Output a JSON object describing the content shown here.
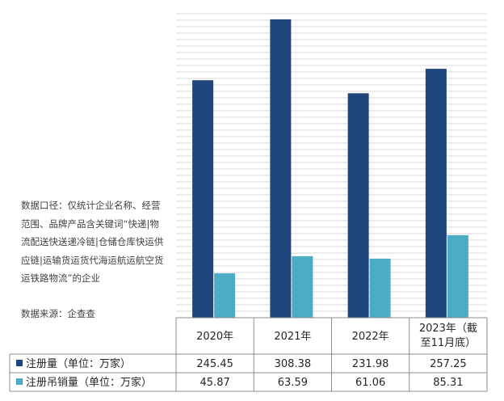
{
  "note": "数据口径：仅统计企业名称、经营范围、品牌产品含关键词“快递|物流配送快送递冷链|仓储仓库快运供应链|运输货运货代海运航运航空货运铁路物流”的企业",
  "source": "数据来源：企查查",
  "colors": {
    "registered": "#1f467c",
    "cancelled": "#4bacc6",
    "grid": "#d9d9d9",
    "border": "#8c8c8c"
  },
  "chart_data": {
    "type": "bar",
    "categories": [
      "2020年",
      "2021年",
      "2022年",
      "2023年（截至11月底）"
    ],
    "series": [
      {
        "name": "注册量（单位：万家）",
        "values": [
          245.45,
          308.38,
          231.98,
          257.25
        ]
      },
      {
        "name": "注册吊销量（单位：万家）",
        "values": [
          45.87,
          63.59,
          61.06,
          85.31
        ]
      }
    ],
    "display_values": [
      [
        "245.45",
        "308.38",
        "231.98",
        "257.25"
      ],
      [
        "45.87",
        "63.59",
        "61.06",
        "85.31"
      ]
    ],
    "ylim": [
      0,
      320
    ],
    "grid": true,
    "data_table": true
  }
}
